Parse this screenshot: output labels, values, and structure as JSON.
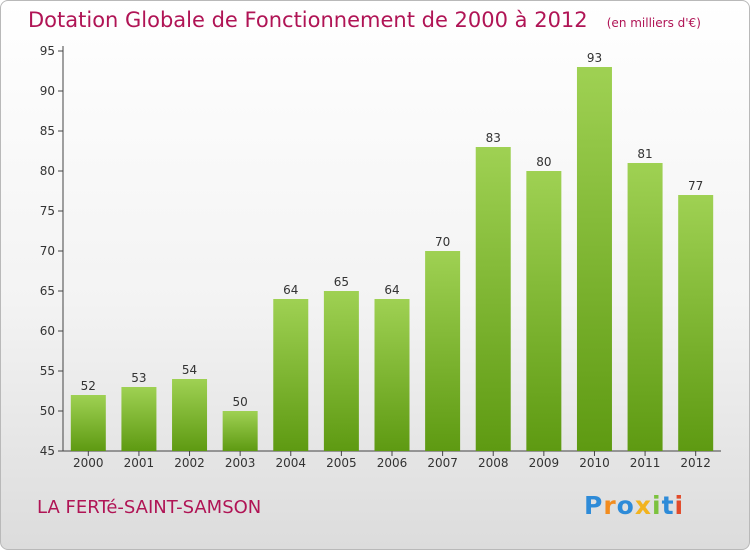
{
  "header": {
    "title": "Dotation Globale de Fonctionnement de 2000 à 2012",
    "unit": "(en milliers d'€)"
  },
  "footer": {
    "commune": "LA FERTé-SAINT-SAMSON",
    "logo_text": "Proxiti",
    "logo_letters": [
      {
        "char": "P",
        "color": "#2e8bd8"
      },
      {
        "char": "r",
        "color": "#f28c1e"
      },
      {
        "char": "o",
        "color": "#2e8bd8"
      },
      {
        "char": "x",
        "color": "#f2b31e"
      },
      {
        "char": "i",
        "color": "#7cc23e"
      },
      {
        "char": "t",
        "color": "#2e8bd8"
      },
      {
        "char": "i",
        "color": "#e24b2a"
      }
    ]
  },
  "chart_data": {
    "type": "bar",
    "title": "Dotation Globale de Fonctionnement de 2000 à 2012",
    "subtitle": "(en milliers d'€)",
    "xlabel": "",
    "ylabel": "",
    "categories": [
      "2000",
      "2001",
      "2002",
      "2003",
      "2004",
      "2005",
      "2006",
      "2007",
      "2008",
      "2009",
      "2010",
      "2011",
      "2012"
    ],
    "values": [
      52,
      53,
      54,
      50,
      64,
      65,
      64,
      70,
      83,
      80,
      93,
      81,
      77
    ],
    "ylim": [
      45,
      95
    ],
    "yticks": [
      45,
      50,
      55,
      60,
      65,
      70,
      75,
      80,
      85,
      90,
      95
    ],
    "grid": false,
    "legend": "none",
    "colors": {
      "bar_top": "#9fd153",
      "bar_bottom": "#5e9a12",
      "text": "#333333",
      "title": "#b01455"
    }
  }
}
